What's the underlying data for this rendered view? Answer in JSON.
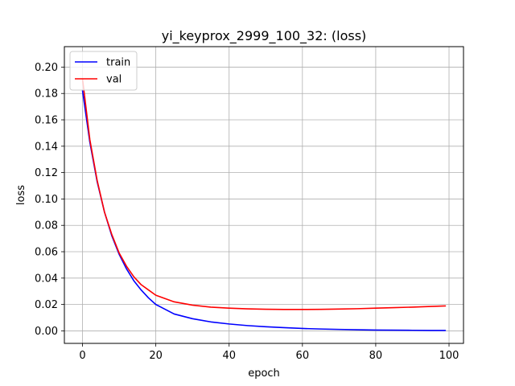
{
  "chart_data": {
    "type": "line",
    "title": "yi_keyprox_2999_100_32: (loss)",
    "xlabel": "epoch",
    "ylabel": "loss",
    "xlim": [
      -4.95,
      103.95
    ],
    "ylim": [
      -0.0095,
      0.2155
    ],
    "xticks": [
      0,
      20,
      40,
      60,
      80,
      100
    ],
    "yticks": [
      0.0,
      0.02,
      0.04,
      0.06,
      0.08,
      0.1,
      0.12,
      0.14,
      0.16,
      0.18,
      0.2
    ],
    "xtick_labels": [
      "0",
      "20",
      "40",
      "60",
      "80",
      "100"
    ],
    "ytick_labels": [
      "0.00",
      "0.02",
      "0.04",
      "0.06",
      "0.08",
      "0.10",
      "0.12",
      "0.14",
      "0.16",
      "0.18",
      "0.20"
    ],
    "grid": true,
    "legend_position": "top-left",
    "series": [
      {
        "name": "train",
        "color": "#0000ff",
        "x": [
          0,
          2,
          4,
          6,
          8,
          10,
          12,
          14,
          16,
          18,
          20,
          25,
          30,
          35,
          40,
          45,
          50,
          55,
          60,
          65,
          70,
          75,
          80,
          85,
          90,
          95,
          99
        ],
        "y": [
          0.182,
          0.143,
          0.113,
          0.09,
          0.072,
          0.058,
          0.047,
          0.038,
          0.031,
          0.025,
          0.02,
          0.0128,
          0.0092,
          0.0068,
          0.0052,
          0.004,
          0.0031,
          0.0024,
          0.0018,
          0.0014,
          0.0011,
          0.0008,
          0.0006,
          0.0005,
          0.0004,
          0.0003,
          0.0003
        ]
      },
      {
        "name": "val",
        "color": "#ff0000",
        "x": [
          0,
          2,
          4,
          6,
          8,
          10,
          12,
          14,
          16,
          18,
          20,
          25,
          30,
          35,
          40,
          45,
          50,
          55,
          60,
          65,
          70,
          75,
          80,
          85,
          90,
          95,
          99
        ],
        "y": [
          0.191,
          0.145,
          0.114,
          0.09,
          0.073,
          0.059,
          0.049,
          0.041,
          0.035,
          0.031,
          0.027,
          0.022,
          0.0195,
          0.018,
          0.0172,
          0.0167,
          0.0164,
          0.0162,
          0.0162,
          0.0163,
          0.0165,
          0.0168,
          0.0172,
          0.0176,
          0.018,
          0.0185,
          0.0189
        ]
      }
    ]
  }
}
